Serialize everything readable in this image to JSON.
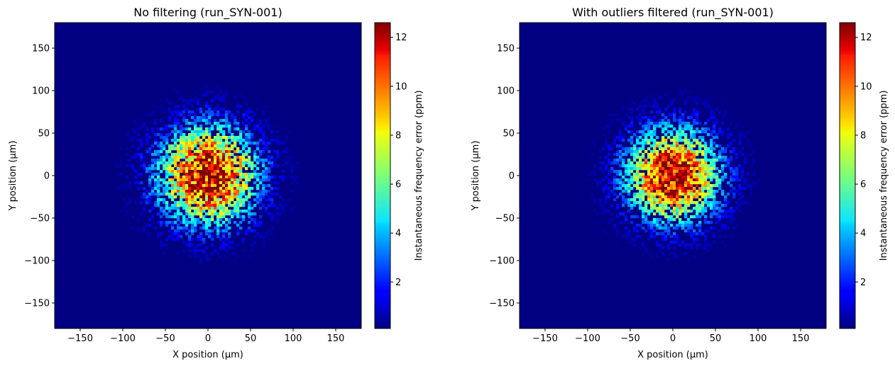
{
  "chart_data": [
    {
      "type": "heatmap",
      "title": "No filtering (run_SYN-001)",
      "xlabel": "X position (µm)",
      "ylabel": "Y position (µm)",
      "xlim": [
        -180,
        180
      ],
      "ylim": [
        -180,
        180
      ],
      "x_ticks": [
        -150,
        -100,
        -50,
        0,
        50,
        100,
        150
      ],
      "y_ticks": [
        -150,
        -100,
        -50,
        0,
        50,
        100,
        150
      ],
      "x_tick_labels": [
        "−150",
        "−100",
        "−50",
        "0",
        "50",
        "100",
        "150"
      ],
      "y_tick_labels": [
        "−150",
        "−100",
        "−50",
        "0",
        "50",
        "100",
        "150"
      ],
      "colorbar": {
        "label": "Instantaneous frequency error (ppm)",
        "range": [
          0.1,
          12.6
        ],
        "ticks": [
          2,
          4,
          6,
          8,
          10,
          12
        ],
        "tick_labels": [
          "2",
          "4",
          "6",
          "8",
          "10",
          "12"
        ],
        "colormap": "jet"
      },
      "distribution": {
        "center": [
          0,
          0
        ],
        "peak": 12.5,
        "sigma": 40,
        "noise": 0.35,
        "seed": 11
      }
    },
    {
      "type": "heatmap",
      "title": "With outliers filtered (run_SYN-001)",
      "xlabel": "X position (µm)",
      "ylabel": "Y position (µm)",
      "xlim": [
        -180,
        180
      ],
      "ylim": [
        -180,
        180
      ],
      "x_ticks": [
        -150,
        -100,
        -50,
        0,
        50,
        100,
        150
      ],
      "y_ticks": [
        -150,
        -100,
        -50,
        0,
        50,
        100,
        150
      ],
      "x_tick_labels": [
        "−150",
        "−100",
        "−50",
        "0",
        "50",
        "100",
        "150"
      ],
      "y_tick_labels": [
        "−150",
        "−100",
        "−50",
        "0",
        "50",
        "100",
        "150"
      ],
      "colorbar": {
        "label": "Instantaneous frequency error (ppm)",
        "range": [
          0.1,
          12.6
        ],
        "ticks": [
          2,
          4,
          6,
          8,
          10,
          12
        ],
        "tick_labels": [
          "2",
          "4",
          "6",
          "8",
          "10",
          "12"
        ],
        "colormap": "jet"
      },
      "distribution": {
        "center": [
          0,
          0
        ],
        "peak": 12.5,
        "sigma": 38,
        "noise": 0.3,
        "seed": 23
      }
    }
  ]
}
